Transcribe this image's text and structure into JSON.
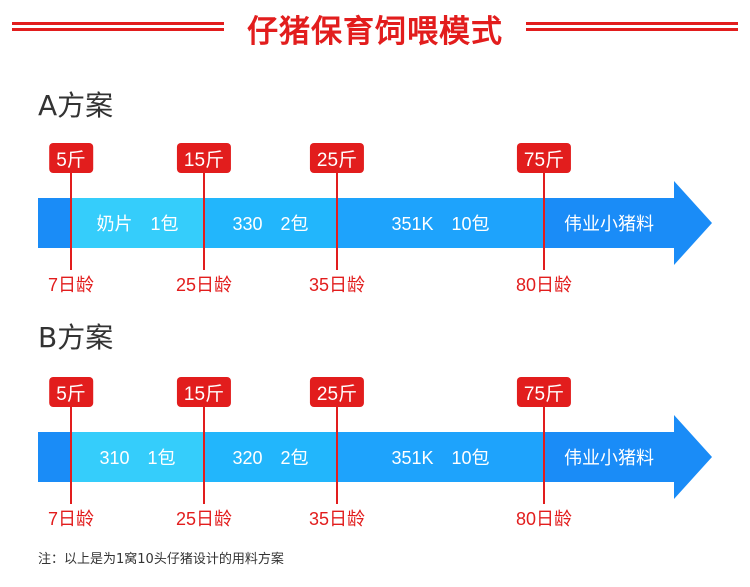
{
  "title": "仔猪保育饲喂模式",
  "colors": {
    "accent_red": "#e21d1d",
    "seg_dark_blue": "#1a8cf7",
    "seg_light_blue": "#35cdfb",
    "seg_mid_blue": "#22b6fc",
    "seg_blue": "#1ea3fc"
  },
  "plans": [
    {
      "name": "A方案",
      "segments": [
        "",
        "奶片　1包",
        "330　2包",
        "351K　10包",
        "伟业小猪料"
      ],
      "weights": [
        "5斤",
        "15斤",
        "25斤",
        "75斤"
      ],
      "ages": [
        "7日龄",
        "25日龄",
        "35日龄",
        "80日龄"
      ]
    },
    {
      "name": "B方案",
      "segments": [
        "",
        "310　1包",
        "320　2包",
        "351K　10包",
        "伟业小猪料"
      ],
      "weights": [
        "5斤",
        "15斤",
        "25斤",
        "75斤"
      ],
      "ages": [
        "7日龄",
        "25日龄",
        "35日龄",
        "80日龄"
      ]
    }
  ],
  "note": "注：以上是为1窝10头仔猪设计的用料方案"
}
